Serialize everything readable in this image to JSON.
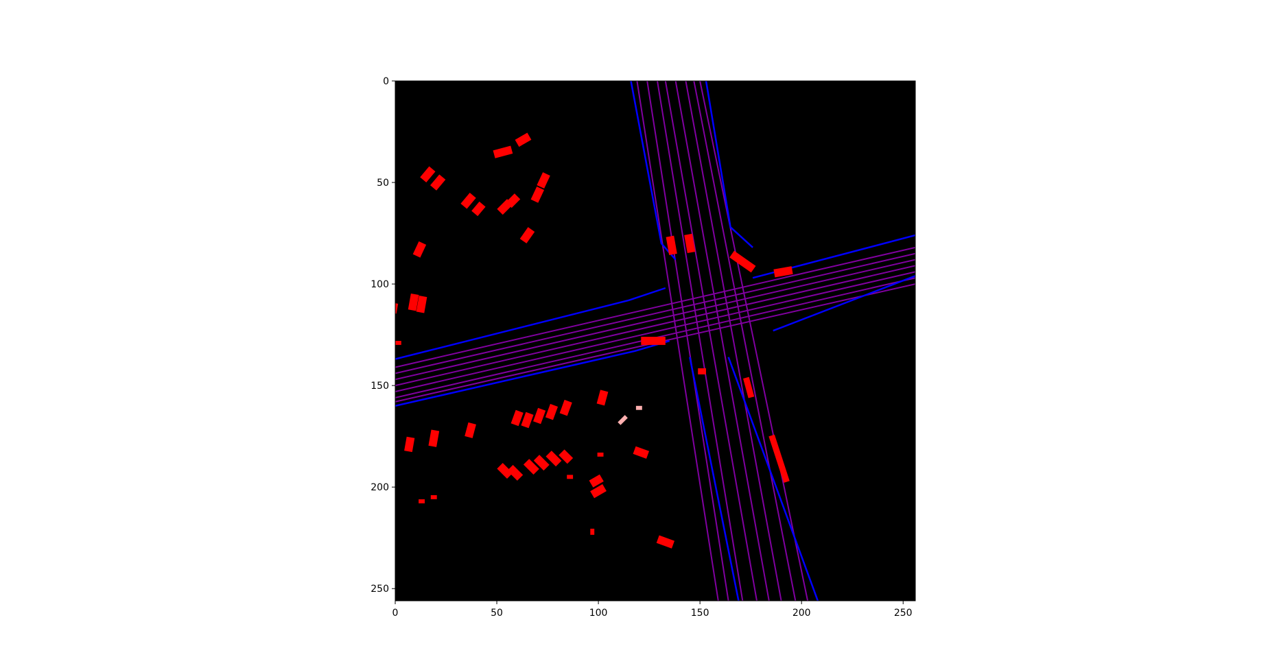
{
  "chart_data": {
    "type": "heatmap",
    "title": "",
    "xlabel": "",
    "ylabel": "",
    "xlim": [
      0,
      256
    ],
    "ylim": [
      256,
      0
    ],
    "x_ticks": [
      0,
      50,
      100,
      150,
      200,
      250
    ],
    "y_ticks": [
      0,
      50,
      100,
      150,
      200,
      250
    ],
    "x_tick_labels": [
      "0",
      "50",
      "100",
      "150",
      "200",
      "250"
    ],
    "y_tick_labels": [
      "0",
      "50",
      "100",
      "150",
      "200",
      "250"
    ],
    "grid": false,
    "background_color": "#000000",
    "colors": {
      "road_boundary": "#0000ff",
      "lane_line": "#8000a0",
      "vehicle": "#ff0000",
      "vehicle_orange": "#ff3000",
      "misc": "#ffb0b0"
    },
    "road_boundaries": [
      [
        [
          116,
          0
        ],
        [
          131,
          80
        ],
        [
          138,
          88
        ]
      ],
      [
        [
          153,
          0
        ],
        [
          165,
          72
        ],
        [
          176,
          82
        ]
      ],
      [
        [
          0,
          137
        ],
        [
          115,
          108
        ],
        [
          133,
          102
        ]
      ],
      [
        [
          0,
          160
        ],
        [
          118,
          133
        ],
        [
          135,
          128
        ]
      ],
      [
        [
          176,
          97
        ],
        [
          256,
          76
        ]
      ],
      [
        [
          186,
          123
        ],
        [
          256,
          96
        ]
      ],
      [
        [
          145,
          136
        ],
        [
          169,
          256
        ]
      ],
      [
        [
          164,
          136
        ],
        [
          208,
          256
        ]
      ]
    ],
    "lane_lines": [
      [
        [
          119,
          0
        ],
        [
          159,
          256
        ]
      ],
      [
        [
          124,
          0
        ],
        [
          164,
          256
        ]
      ],
      [
        [
          129,
          0
        ],
        [
          171,
          256
        ]
      ],
      [
        [
          133,
          0
        ],
        [
          178,
          256
        ]
      ],
      [
        [
          138,
          0
        ],
        [
          184,
          256
        ]
      ],
      [
        [
          143,
          0
        ],
        [
          190,
          256
        ]
      ],
      [
        [
          147,
          0
        ],
        [
          197,
          256
        ]
      ],
      [
        [
          150,
          0
        ],
        [
          203,
          256
        ]
      ],
      [
        [
          0,
          141
        ],
        [
          256,
          82
        ]
      ],
      [
        [
          0,
          144
        ],
        [
          256,
          85
        ]
      ],
      [
        [
          0,
          147
        ],
        [
          256,
          88
        ]
      ],
      [
        [
          0,
          150
        ],
        [
          256,
          91
        ]
      ],
      [
        [
          0,
          153
        ],
        [
          256,
          94
        ]
      ],
      [
        [
          0,
          156
        ],
        [
          256,
          97
        ]
      ],
      [
        [
          0,
          158
        ],
        [
          256,
          100
        ]
      ]
    ],
    "vehicles": [
      {
        "x": 63,
        "y": 29,
        "w": 7,
        "h": 4,
        "angle": -30
      },
      {
        "x": 53,
        "y": 35,
        "w": 9,
        "h": 4,
        "angle": -15
      },
      {
        "x": 16,
        "y": 46,
        "w": 7,
        "h": 4,
        "angle": -50
      },
      {
        "x": 21,
        "y": 50,
        "w": 7,
        "h": 4,
        "angle": -50
      },
      {
        "x": 73,
        "y": 49,
        "w": 7,
        "h": 4,
        "angle": -65
      },
      {
        "x": 70,
        "y": 56,
        "w": 7,
        "h": 4,
        "angle": -65
      },
      {
        "x": 36,
        "y": 59,
        "w": 7,
        "h": 4,
        "angle": -50
      },
      {
        "x": 41,
        "y": 63,
        "w": 6,
        "h": 4,
        "angle": -50
      },
      {
        "x": 54,
        "y": 62,
        "w": 7,
        "h": 4,
        "angle": -45
      },
      {
        "x": 58,
        "y": 59,
        "w": 6,
        "h": 4,
        "angle": -45
      },
      {
        "x": 65,
        "y": 76,
        "w": 7,
        "h": 4,
        "angle": -55
      },
      {
        "x": 12,
        "y": 83,
        "w": 7,
        "h": 4,
        "angle": -65
      },
      {
        "x": 9,
        "y": 109,
        "w": 8,
        "h": 4,
        "angle": -80
      },
      {
        "x": 13,
        "y": 110,
        "w": 8,
        "h": 4,
        "angle": -80
      },
      {
        "x": 0,
        "y": 112,
        "w": 5,
        "h": 2,
        "angle": -80
      },
      {
        "x": 1,
        "y": 129,
        "w": 4,
        "h": 2,
        "angle": 0
      },
      {
        "x": 136,
        "y": 81,
        "w": 9,
        "h": 4,
        "angle": 80
      },
      {
        "x": 145,
        "y": 80,
        "w": 9,
        "h": 4,
        "angle": 80
      },
      {
        "x": 171,
        "y": 89,
        "w": 13,
        "h": 4,
        "angle": 35
      },
      {
        "x": 191,
        "y": 94,
        "w": 9,
        "h": 4,
        "angle": -10
      },
      {
        "x": 127,
        "y": 128,
        "w": 12,
        "h": 4,
        "angle": 0
      },
      {
        "x": 151,
        "y": 143,
        "w": 4,
        "h": 3,
        "angle": 0
      },
      {
        "x": 174,
        "y": 151,
        "w": 10,
        "h": 3,
        "angle": 75
      },
      {
        "x": 189,
        "y": 186,
        "w": 24,
        "h": 3,
        "angle": 72
      },
      {
        "x": 102,
        "y": 156,
        "w": 7,
        "h": 4,
        "angle": -75
      },
      {
        "x": 60,
        "y": 166,
        "w": 7,
        "h": 4,
        "angle": -70
      },
      {
        "x": 65,
        "y": 167,
        "w": 7,
        "h": 4,
        "angle": -70
      },
      {
        "x": 71,
        "y": 165,
        "w": 7,
        "h": 4,
        "angle": -70
      },
      {
        "x": 77,
        "y": 163,
        "w": 7,
        "h": 4,
        "angle": -70
      },
      {
        "x": 84,
        "y": 161,
        "w": 7,
        "h": 4,
        "angle": -70
      },
      {
        "x": 7,
        "y": 179,
        "w": 7,
        "h": 4,
        "angle": -80
      },
      {
        "x": 19,
        "y": 176,
        "w": 8,
        "h": 4,
        "angle": -80
      },
      {
        "x": 37,
        "y": 172,
        "w": 7,
        "h": 4,
        "angle": -75
      },
      {
        "x": 54,
        "y": 192,
        "w": 7,
        "h": 4,
        "angle": 45
      },
      {
        "x": 59,
        "y": 193,
        "w": 7,
        "h": 4,
        "angle": 45
      },
      {
        "x": 67,
        "y": 190,
        "w": 7,
        "h": 4,
        "angle": 45
      },
      {
        "x": 72,
        "y": 188,
        "w": 7,
        "h": 4,
        "angle": 45
      },
      {
        "x": 78,
        "y": 186,
        "w": 7,
        "h": 4,
        "angle": 45
      },
      {
        "x": 84,
        "y": 185,
        "w": 6,
        "h": 4,
        "angle": 45
      },
      {
        "x": 99,
        "y": 197,
        "w": 6,
        "h": 4,
        "angle": -30
      },
      {
        "x": 100,
        "y": 202,
        "w": 7,
        "h": 4,
        "angle": -30
      },
      {
        "x": 121,
        "y": 183,
        "w": 7,
        "h": 4,
        "angle": 20
      },
      {
        "x": 133,
        "y": 227,
        "w": 8,
        "h": 4,
        "angle": 20
      },
      {
        "x": 13,
        "y": 207,
        "w": 3,
        "h": 2,
        "angle": 0
      },
      {
        "x": 19,
        "y": 205,
        "w": 3,
        "h": 2,
        "angle": 0
      },
      {
        "x": 97,
        "y": 222,
        "w": 2,
        "h": 3,
        "angle": 0
      },
      {
        "x": 86,
        "y": 195,
        "w": 3,
        "h": 2,
        "angle": 0
      },
      {
        "x": 101,
        "y": 184,
        "w": 3,
        "h": 2,
        "angle": 0
      }
    ],
    "misc_objects": [
      {
        "x": 112,
        "y": 167,
        "w": 5,
        "h": 2,
        "angle": -45
      },
      {
        "x": 120,
        "y": 161,
        "w": 3,
        "h": 2,
        "angle": 0
      }
    ]
  }
}
